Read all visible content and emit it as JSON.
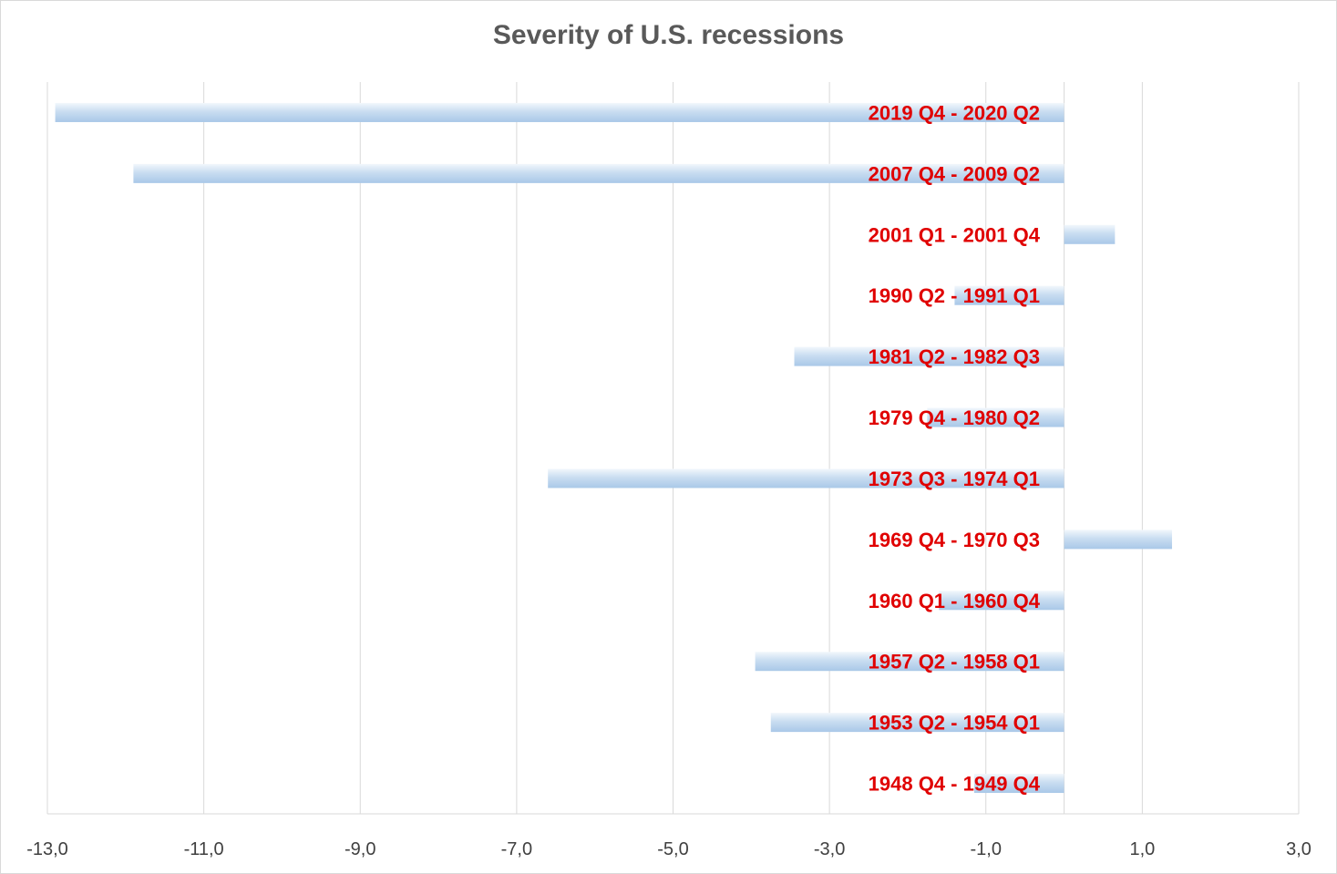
{
  "chart_data": {
    "type": "bar",
    "orientation": "horizontal",
    "title": "Severity of U.S. recessions",
    "xlabel": "",
    "ylabel": "",
    "xlim": [
      -13,
      3
    ],
    "xticks": [
      -13,
      -11,
      -9,
      -7,
      -5,
      -3,
      -1,
      1,
      3
    ],
    "xtick_labels": [
      "-13,0",
      "-11,0",
      "-9,0",
      "-7,0",
      "-5,0",
      "-3,0",
      "-1,0",
      "1,0",
      "3,0"
    ],
    "grid": "vertical",
    "legend": "none",
    "bar_color": "#bdd7ee",
    "label_color": "#e00000",
    "categories": [
      "2019 Q4 - 2020 Q2",
      "2007 Q4 - 2009 Q2",
      "2001 Q1 - 2001 Q4",
      "1990 Q2 - 1991 Q1",
      "1981 Q2 - 1982 Q3",
      "1979 Q4 - 1980 Q2",
      "1973 Q3 - 1974 Q1",
      "1969 Q4 - 1970 Q3",
      "1960 Q1 - 1960 Q4",
      "1957 Q2 - 1958 Q1",
      "1953 Q2 - 1954 Q1",
      "1948 Q4 - 1949 Q4"
    ],
    "values": [
      -12.9,
      -11.9,
      0.65,
      -1.4,
      -3.45,
      -1.75,
      -6.6,
      1.38,
      -1.6,
      -3.95,
      -3.75,
      -1.15
    ]
  }
}
